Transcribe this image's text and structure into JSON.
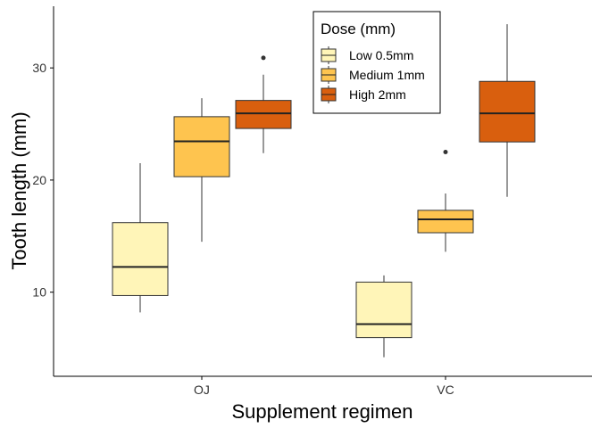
{
  "chart_data": {
    "type": "boxplot",
    "xlabel": "Supplement regimen",
    "ylabel": "Tooth length (mm)",
    "categories": [
      "OJ",
      "VC"
    ],
    "ylim": [
      2.5,
      35.5
    ],
    "yticks": [
      10,
      20,
      30
    ],
    "grid": false,
    "legend": {
      "title": "Dose (mm)",
      "position": "top-center"
    },
    "series": [
      {
        "name": "Low 0.5mm",
        "color": "#FFF5B8",
        "boxes": [
          {
            "category": "OJ",
            "whisker_low": 8.2,
            "q1": 9.7,
            "median": 12.25,
            "q3": 16.2,
            "whisker_high": 21.5,
            "outliers": []
          },
          {
            "category": "VC",
            "whisker_low": 4.2,
            "q1": 5.95,
            "median": 7.15,
            "q3": 10.9,
            "whisker_high": 11.5,
            "outliers": []
          }
        ]
      },
      {
        "name": "Medium 1mm",
        "color": "#FEC44F",
        "boxes": [
          {
            "category": "OJ",
            "whisker_low": 14.5,
            "q1": 20.3,
            "median": 23.45,
            "q3": 25.65,
            "whisker_high": 27.3,
            "outliers": []
          },
          {
            "category": "VC",
            "whisker_low": 13.6,
            "q1": 15.3,
            "median": 16.5,
            "q3": 17.3,
            "whisker_high": 18.8,
            "outliers": [
              22.5
            ]
          }
        ]
      },
      {
        "name": "High 2mm",
        "color": "#D95F0E",
        "boxes": [
          {
            "category": "OJ",
            "whisker_low": 22.4,
            "q1": 24.6,
            "median": 25.95,
            "q3": 27.1,
            "whisker_high": 29.4,
            "outliers": [
              30.9
            ]
          },
          {
            "category": "VC",
            "whisker_low": 18.5,
            "q1": 23.4,
            "median": 25.95,
            "q3": 28.8,
            "whisker_high": 33.9,
            "outliers": []
          }
        ]
      }
    ]
  }
}
